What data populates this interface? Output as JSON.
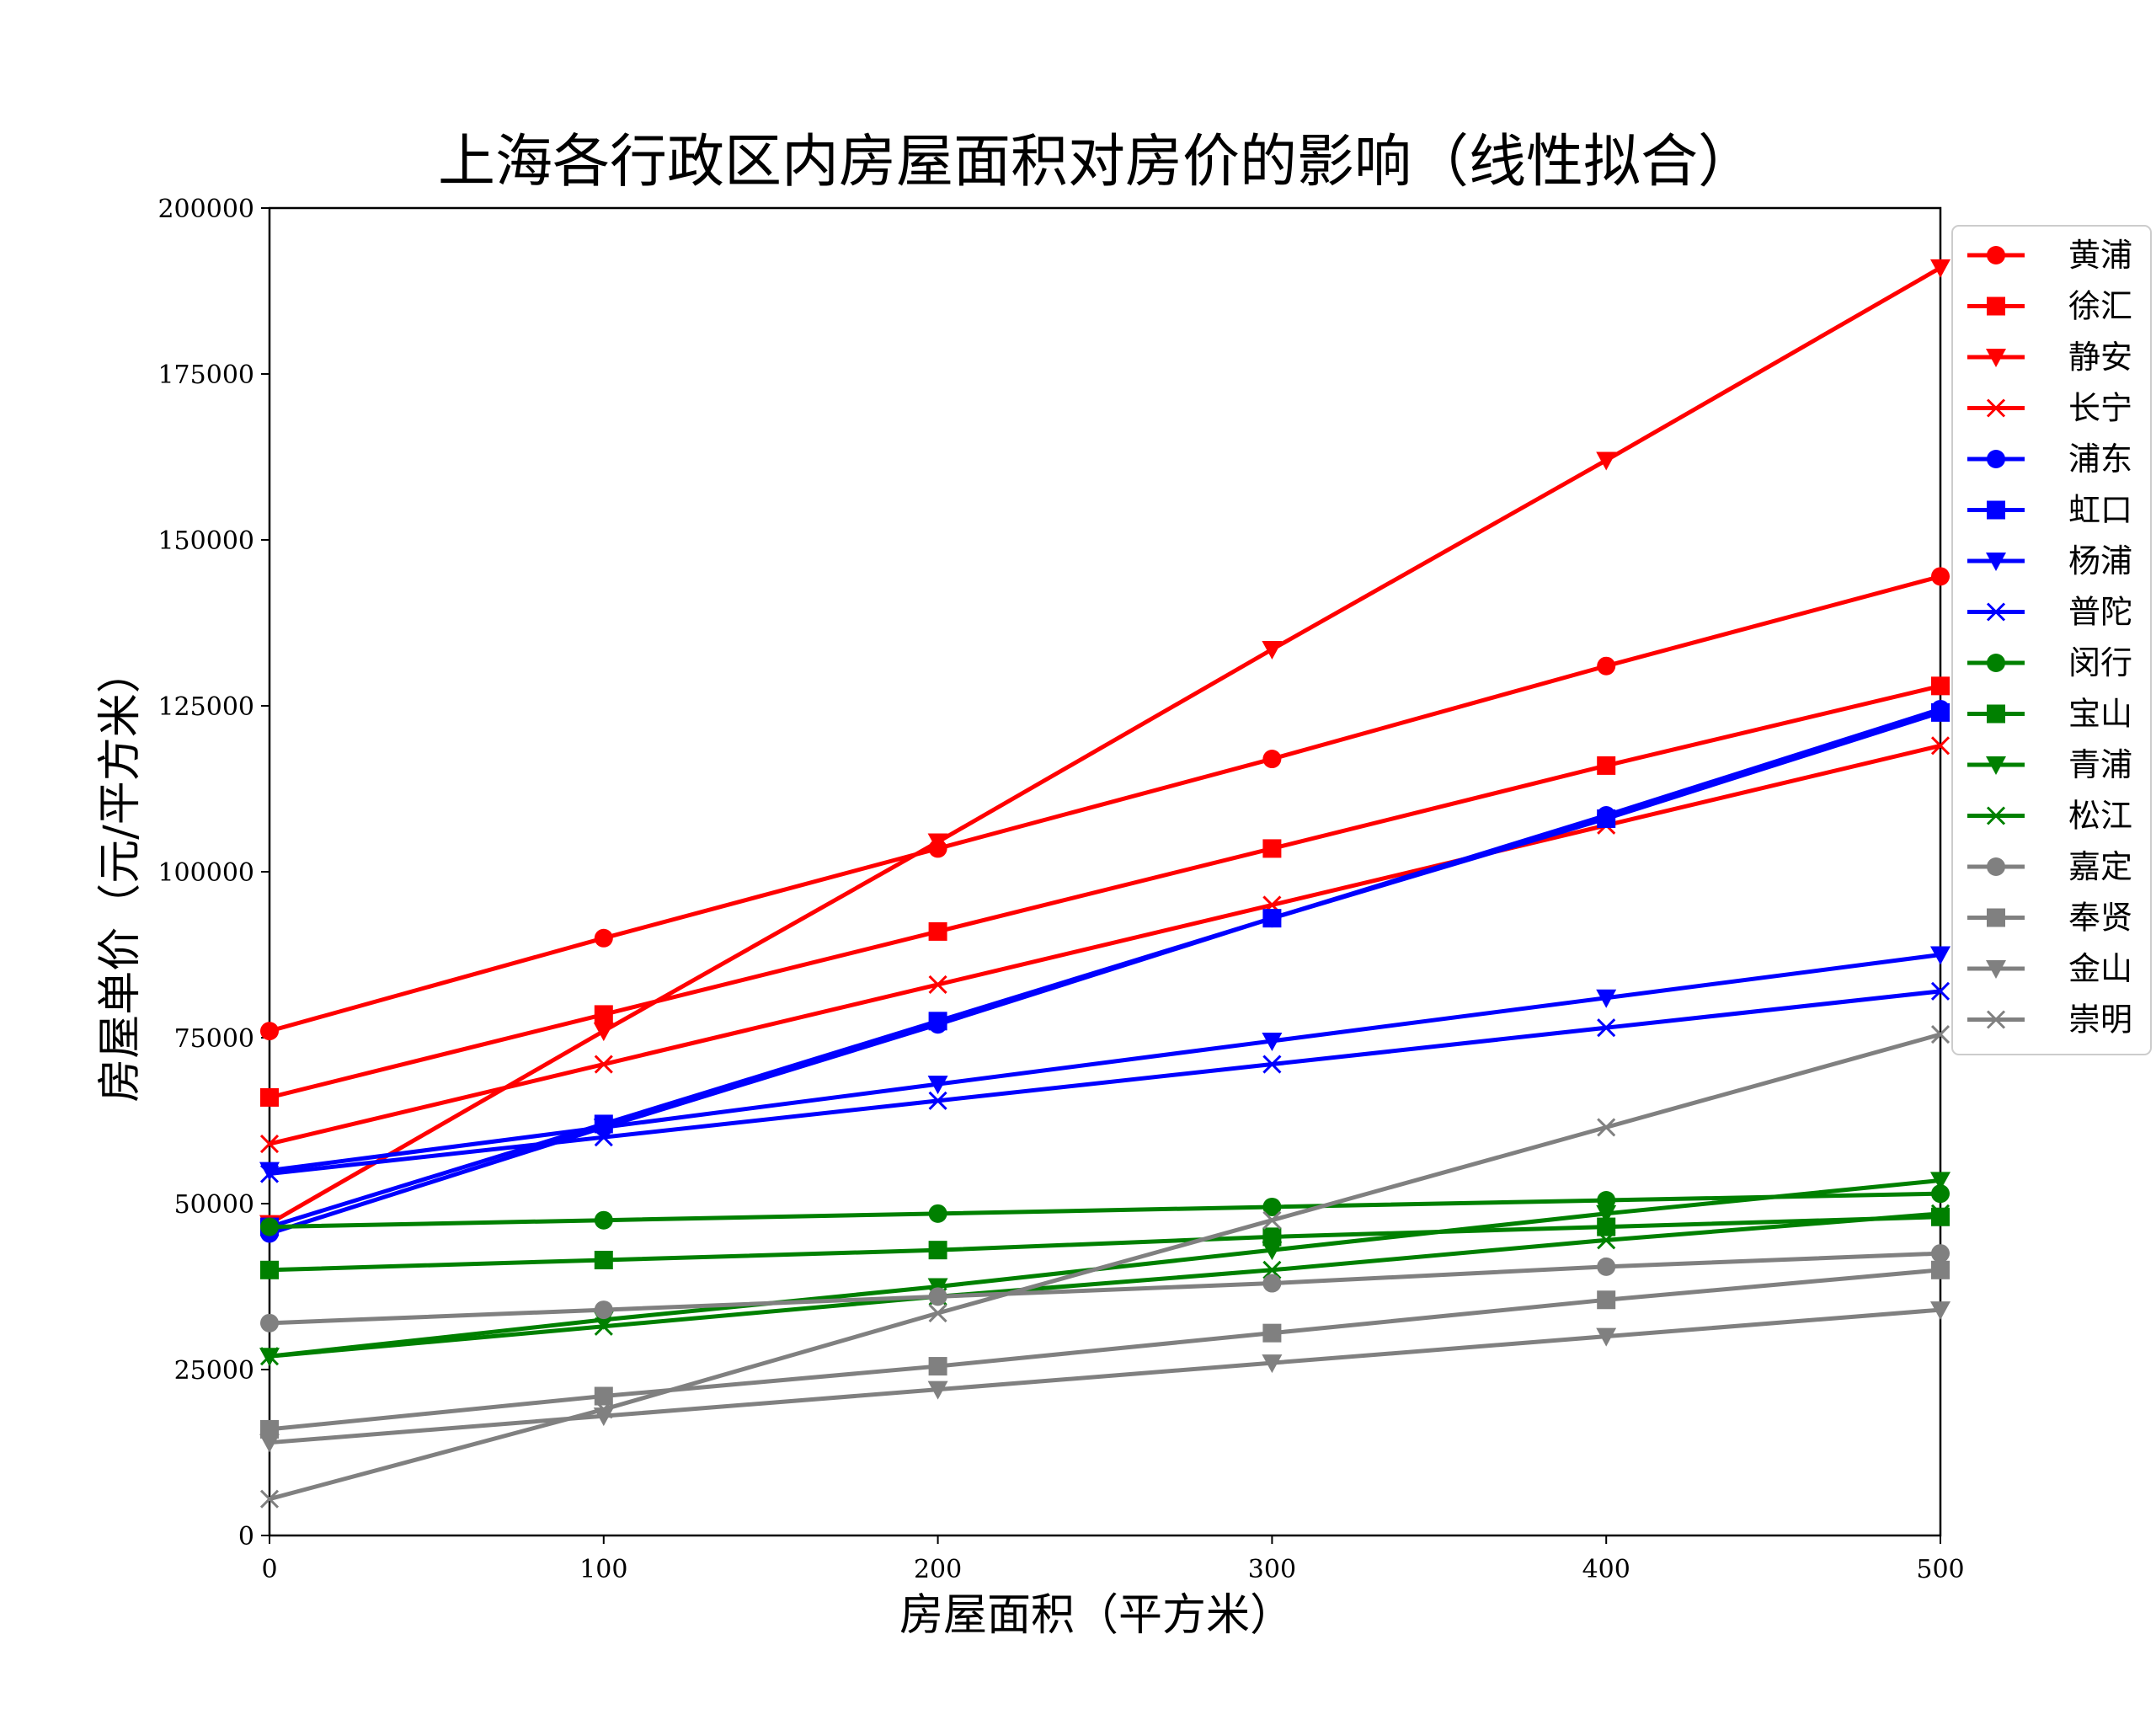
{
  "chart_data": {
    "type": "line",
    "title": "上海各行政区内房屋面积对房价的影响（线性拟合）",
    "xlabel": "房屋面积（平方米）",
    "ylabel": "房屋单价（元/平方米）",
    "x": [
      0,
      100,
      200,
      300,
      400,
      500
    ],
    "xlim": [
      0,
      500
    ],
    "ylim": [
      0,
      200000
    ],
    "xticks": [
      0,
      100,
      200,
      300,
      400,
      500
    ],
    "yticks": [
      0,
      25000,
      50000,
      75000,
      100000,
      125000,
      150000,
      175000,
      200000
    ],
    "grid": false,
    "legend_position": "right",
    "series": [
      {
        "name": "黄浦",
        "color": "#ff0000",
        "marker": "circle",
        "values": [
          76000,
          90000,
          103500,
          117000,
          131000,
          144500
        ]
      },
      {
        "name": "徐汇",
        "color": "#ff0000",
        "marker": "square",
        "values": [
          66000,
          78500,
          91000,
          103500,
          116000,
          128000
        ]
      },
      {
        "name": "静安",
        "color": "#ff0000",
        "marker": "triangle_down",
        "values": [
          47000,
          76000,
          104500,
          133500,
          162000,
          191000
        ]
      },
      {
        "name": "长宁",
        "color": "#ff0000",
        "marker": "x",
        "values": [
          59000,
          71000,
          83000,
          95000,
          107000,
          119000
        ]
      },
      {
        "name": "浦东",
        "color": "#0000ff",
        "marker": "circle",
        "values": [
          45500,
          61500,
          77000,
          93000,
          108500,
          124500
        ]
      },
      {
        "name": "虹口",
        "color": "#0000ff",
        "marker": "square",
        "values": [
          46500,
          62000,
          77500,
          93000,
          108000,
          124000
        ]
      },
      {
        "name": "杨浦",
        "color": "#0000ff",
        "marker": "triangle_down",
        "values": [
          55000,
          61500,
          68000,
          74500,
          81000,
          87500
        ]
      },
      {
        "name": "普陀",
        "color": "#0000ff",
        "marker": "x",
        "values": [
          54500,
          60000,
          65500,
          71000,
          76500,
          82000
        ]
      },
      {
        "name": "闵行",
        "color": "#008000",
        "marker": "circle",
        "values": [
          46500,
          47500,
          48500,
          49500,
          50500,
          51500
        ]
      },
      {
        "name": "宝山",
        "color": "#008000",
        "marker": "square",
        "values": [
          40000,
          41500,
          43000,
          45000,
          46500,
          48000
        ]
      },
      {
        "name": "青浦",
        "color": "#008000",
        "marker": "triangle_down",
        "values": [
          27000,
          32500,
          37500,
          43000,
          48500,
          53500
        ]
      },
      {
        "name": "松江",
        "color": "#008000",
        "marker": "x",
        "values": [
          27000,
          31500,
          36000,
          40000,
          44500,
          48500
        ]
      },
      {
        "name": "嘉定",
        "color": "#808080",
        "marker": "circle",
        "values": [
          32000,
          34000,
          36000,
          38000,
          40500,
          42500
        ]
      },
      {
        "name": "奉贤",
        "color": "#808080",
        "marker": "square",
        "values": [
          16000,
          21000,
          25500,
          30500,
          35500,
          40000
        ]
      },
      {
        "name": "金山",
        "color": "#808080",
        "marker": "triangle_down",
        "values": [
          14000,
          18000,
          22000,
          26000,
          30000,
          34000
        ]
      },
      {
        "name": "崇明",
        "color": "#808080",
        "marker": "x",
        "values": [
          5500,
          19000,
          33500,
          47500,
          61500,
          75500
        ]
      }
    ]
  }
}
